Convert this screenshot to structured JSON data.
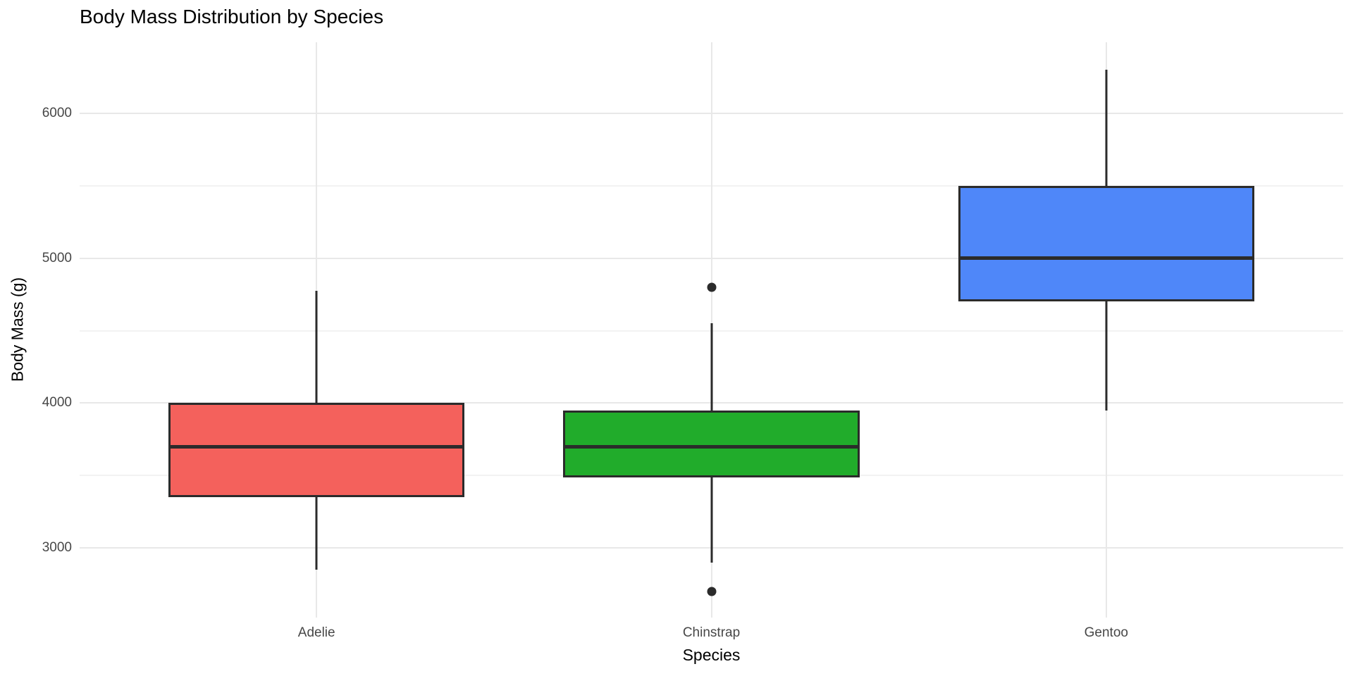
{
  "title": "Body Mass Distribution by Species",
  "axes": {
    "x_title": "Species",
    "y_title": "Body Mass (g)"
  },
  "chart_data": {
    "type": "boxplot",
    "title": "Body Mass Distribution by Species",
    "xlabel": "Species",
    "ylabel": "Body Mass (g)",
    "categories": [
      "Adelie",
      "Chinstrap",
      "Gentoo"
    ],
    "series": [
      {
        "name": "Adelie",
        "whisker_low": 2850,
        "q1": 3350,
        "median": 3700,
        "q3": 4000,
        "whisker_high": 4775,
        "outliers": [],
        "fill": "#F4615C"
      },
      {
        "name": "Chinstrap",
        "whisker_low": 2900,
        "q1": 3487.5,
        "median": 3700,
        "q3": 3950,
        "whisker_high": 4550,
        "outliers": [
          4800,
          2700
        ],
        "fill": "#21AC2B"
      },
      {
        "name": "Gentoo",
        "whisker_low": 3950,
        "q1": 4700,
        "median": 5000,
        "q3": 5500,
        "whisker_high": 6300,
        "outliers": [],
        "fill": "#4F87F9"
      }
    ],
    "y_ticks": [
      3000,
      4000,
      5000,
      6000
    ],
    "y_minor_ticks": [
      3500,
      4500,
      5500
    ],
    "ylim": [
      2520,
      6490
    ],
    "x_positions_pct": [
      18.75,
      50,
      81.25
    ],
    "box_width_pct": 23.4375,
    "grid": "horizontal major+minor, vertical major at each category",
    "legend": "none"
  },
  "colors": {
    "background": "#FFFFFF",
    "box_border": "#2B2B2B",
    "median_line": "#2B2B2B",
    "whisker": "#2B2B2B",
    "outlier": "#2B2B2B",
    "grid_major": "#E8E8E8",
    "grid_minor": "#F2F2F2",
    "tick_label": "#474747",
    "axis_title": "#000000",
    "title": "#000000"
  }
}
